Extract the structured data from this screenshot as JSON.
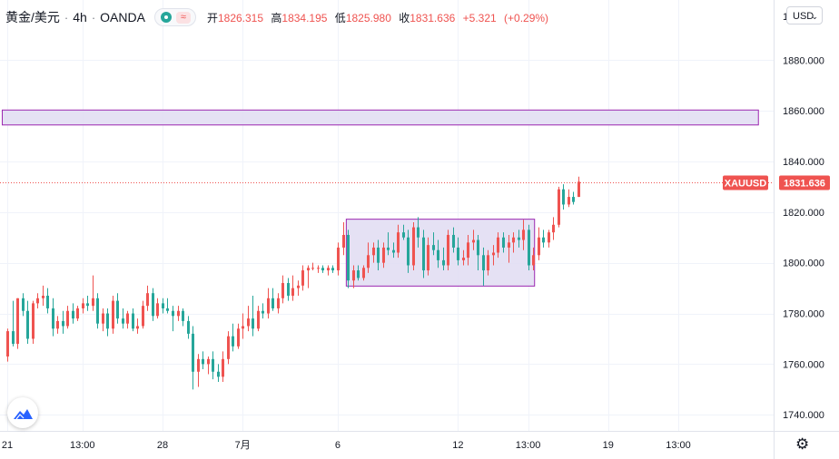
{
  "header": {
    "symbol": "黄金/美元",
    "interval": "4h",
    "source": "OANDA",
    "open_label": "开",
    "open_value": "1826.315",
    "high_label": "高",
    "high_value": "1834.195",
    "low_label": "低",
    "low_value": "1825.980",
    "close_label": "收",
    "close_value": "1831.636",
    "change": "+5.321",
    "change_pct": "(+0.29%)",
    "separator": "·",
    "wave_icon": "≈"
  },
  "currency_selector": {
    "label": "USD",
    "chevron": "⌄"
  },
  "price_tag": {
    "symbol": "XAUUSD",
    "value": "1831.636"
  },
  "colors": {
    "up": "#ef5350",
    "down": "#26a69a",
    "zone_fill": "#e1dcf2",
    "zone_stroke": "#9c27b0",
    "logo": "#2962ff"
  },
  "icons": {
    "logo": "tradingview-logo-icon",
    "settings": "gear-icon"
  },
  "chart_data": {
    "type": "candlestick",
    "title": "黄金/美元 · 4h · OANDA",
    "ylim": [
      1734,
      1898
    ],
    "y_ticks": [
      1740,
      1760,
      1780,
      1800,
      1820,
      1840,
      1860,
      1880
    ],
    "y_tick_labels": [
      "1740.000",
      "1760.000",
      "1780.000",
      "1800.000",
      "1820.000",
      "1840.000",
      "1860.000",
      "1880.000"
    ],
    "top_tick_partial": "1",
    "x_ticks": [
      {
        "label": "21",
        "bar": 0
      },
      {
        "label": "13:00",
        "bar": 15
      },
      {
        "label": "28",
        "bar": 31
      },
      {
        "label": "7月",
        "bar": 47
      },
      {
        "label": "6",
        "bar": 66
      },
      {
        "label": "12",
        "bar": 90
      },
      {
        "label": "13:00",
        "bar": 104
      },
      {
        "label": "19",
        "bar": 120
      },
      {
        "label": "13:00",
        "bar": 134
      }
    ],
    "last_price": 1831.636,
    "zones": [
      {
        "kind": "resistance",
        "from_bar": -1,
        "to_bar": 150,
        "top": 1860.3,
        "bottom": 1854.4
      },
      {
        "kind": "consolidation",
        "from_bar": 67.7,
        "to_bar": 105.3,
        "top": 1817.2,
        "bottom": 1790.8
      }
    ],
    "candles": [
      [
        1763,
        1774,
        1761,
        1773
      ],
      [
        1773,
        1785,
        1767,
        1768
      ],
      [
        1768,
        1786,
        1766,
        1786
      ],
      [
        1786,
        1788,
        1779,
        1781
      ],
      [
        1781,
        1785,
        1768,
        1770
      ],
      [
        1770,
        1785,
        1768,
        1784
      ],
      [
        1784,
        1788,
        1782,
        1786
      ],
      [
        1786,
        1791,
        1783,
        1787
      ],
      [
        1787,
        1790,
        1780,
        1782
      ],
      [
        1782,
        1786,
        1771,
        1774
      ],
      [
        1774,
        1779,
        1772,
        1777
      ],
      [
        1777,
        1781,
        1772,
        1775
      ],
      [
        1775,
        1783,
        1774,
        1781
      ],
      [
        1781,
        1784,
        1776,
        1778
      ],
      [
        1778,
        1783,
        1777,
        1782
      ],
      [
        1782,
        1786,
        1780,
        1784
      ],
      [
        1784,
        1787,
        1781,
        1783
      ],
      [
        1783,
        1795,
        1781,
        1786
      ],
      [
        1786,
        1788,
        1774,
        1776
      ],
      [
        1776,
        1782,
        1773,
        1780
      ],
      [
        1780,
        1782,
        1771,
        1774
      ],
      [
        1774,
        1787,
        1772,
        1785
      ],
      [
        1785,
        1788,
        1776,
        1778
      ],
      [
        1778,
        1782,
        1774,
        1776
      ],
      [
        1776,
        1781,
        1774,
        1780
      ],
      [
        1780,
        1782,
        1773,
        1774
      ],
      [
        1774,
        1778,
        1772,
        1775
      ],
      [
        1775,
        1785,
        1774,
        1783
      ],
      [
        1783,
        1791,
        1781,
        1788
      ],
      [
        1788,
        1790,
        1777,
        1779
      ],
      [
        1779,
        1786,
        1778,
        1784
      ],
      [
        1784,
        1786,
        1780,
        1782
      ],
      [
        1782,
        1786,
        1780,
        1781
      ],
      [
        1781,
        1783,
        1773,
        1779
      ],
      [
        1779,
        1783,
        1777,
        1781
      ],
      [
        1781,
        1782,
        1775,
        1777
      ],
      [
        1777,
        1779,
        1770,
        1772
      ],
      [
        1772,
        1775,
        1750,
        1757
      ],
      [
        1757,
        1764,
        1751,
        1762
      ],
      [
        1762,
        1765,
        1758,
        1760
      ],
      [
        1760,
        1763,
        1756,
        1762
      ],
      [
        1762,
        1765,
        1754,
        1757
      ],
      [
        1757,
        1760,
        1753,
        1755
      ],
      [
        1755,
        1765,
        1753,
        1762
      ],
      [
        1762,
        1773,
        1760,
        1771
      ],
      [
        1771,
        1776,
        1765,
        1767
      ],
      [
        1767,
        1776,
        1766,
        1774
      ],
      [
        1774,
        1780,
        1770,
        1775
      ],
      [
        1775,
        1783,
        1773,
        1778
      ],
      [
        1778,
        1787,
        1771,
        1774
      ],
      [
        1774,
        1783,
        1773,
        1781
      ],
      [
        1781,
        1784,
        1778,
        1780
      ],
      [
        1780,
        1790,
        1778,
        1786
      ],
      [
        1786,
        1790,
        1781,
        1782
      ],
      [
        1782,
        1788,
        1780,
        1786
      ],
      [
        1786,
        1795,
        1784,
        1792
      ],
      [
        1792,
        1794,
        1785,
        1787
      ],
      [
        1787,
        1795,
        1785,
        1790
      ],
      [
        1790,
        1793,
        1787,
        1791
      ],
      [
        1791,
        1799,
        1789,
        1797
      ],
      [
        1797,
        1799,
        1790,
        1798
      ],
      [
        1798,
        1800,
        1797,
        1798
      ],
      [
        1798,
        1799,
        1796,
        1798
      ],
      [
        1798,
        1799,
        1796,
        1797
      ],
      [
        1797,
        1799,
        1795,
        1798
      ],
      [
        1798,
        1799,
        1796,
        1797
      ],
      [
        1797,
        1808,
        1795,
        1806
      ],
      [
        1806,
        1816,
        1803,
        1811
      ],
      [
        1811,
        1813,
        1790,
        1793
      ],
      [
        1793,
        1799,
        1790,
        1797
      ],
      [
        1797,
        1799,
        1793,
        1794
      ],
      [
        1794,
        1799,
        1793,
        1798
      ],
      [
        1798,
        1808,
        1796,
        1803
      ],
      [
        1803,
        1808,
        1800,
        1806
      ],
      [
        1806,
        1809,
        1797,
        1800
      ],
      [
        1800,
        1808,
        1798,
        1806
      ],
      [
        1806,
        1812,
        1803,
        1805
      ],
      [
        1805,
        1808,
        1802,
        1804
      ],
      [
        1804,
        1815,
        1802,
        1812
      ],
      [
        1812,
        1815,
        1809,
        1810
      ],
      [
        1810,
        1813,
        1796,
        1799
      ],
      [
        1799,
        1816,
        1797,
        1814
      ],
      [
        1814,
        1818,
        1806,
        1810
      ],
      [
        1810,
        1813,
        1794,
        1797
      ],
      [
        1797,
        1810,
        1795,
        1807
      ],
      [
        1807,
        1812,
        1803,
        1805
      ],
      [
        1805,
        1809,
        1798,
        1801
      ],
      [
        1801,
        1806,
        1797,
        1799
      ],
      [
        1799,
        1813,
        1797,
        1811
      ],
      [
        1811,
        1814,
        1804,
        1806
      ],
      [
        1806,
        1810,
        1799,
        1801
      ],
      [
        1801,
        1805,
        1799,
        1802
      ],
      [
        1802,
        1811,
        1799,
        1808
      ],
      [
        1808,
        1813,
        1805,
        1809
      ],
      [
        1809,
        1811,
        1797,
        1803
      ],
      [
        1803,
        1806,
        1791,
        1797
      ],
      [
        1797,
        1805,
        1795,
        1803
      ],
      [
        1803,
        1807,
        1799,
        1804
      ],
      [
        1804,
        1812,
        1802,
        1810
      ],
      [
        1810,
        1812,
        1804,
        1806
      ],
      [
        1806,
        1811,
        1800,
        1808
      ],
      [
        1808,
        1812,
        1804,
        1810
      ],
      [
        1810,
        1813,
        1806,
        1809
      ],
      [
        1809,
        1817,
        1805,
        1813
      ],
      [
        1813,
        1815,
        1797,
        1799
      ],
      [
        1799,
        1806,
        1797,
        1803
      ],
      [
        1803,
        1814,
        1801,
        1810
      ],
      [
        1810,
        1813,
        1806,
        1808
      ],
      [
        1808,
        1813,
        1806,
        1812
      ],
      [
        1812,
        1818,
        1809,
        1815
      ],
      [
        1815,
        1830,
        1814,
        1829
      ],
      [
        1829,
        1831,
        1821,
        1823
      ],
      [
        1823,
        1829,
        1822,
        1826
      ],
      [
        1826,
        1828,
        1823,
        1824
      ],
      [
        1826,
        1834,
        1826,
        1832
      ]
    ]
  }
}
